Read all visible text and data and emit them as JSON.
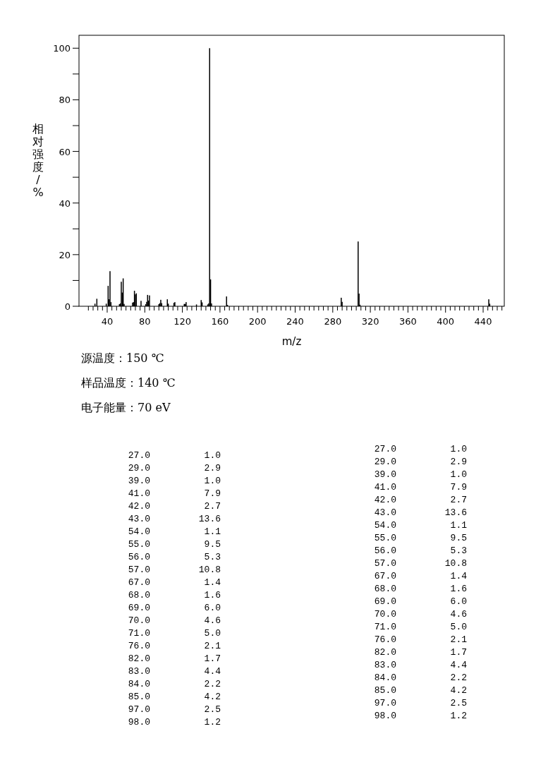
{
  "chart_data": {
    "type": "bar",
    "xlabel": "m/z",
    "ylabel": "相对强度/%",
    "color": "#000000",
    "annotations": [
      "源温度：150 ℃",
      "样品温度：140 ℃",
      "电子能量：70 eV",
      "27.0",
      "1.0",
      "29.0",
      "2.9",
      "39.0",
      "1.0",
      "41.0",
      "7.9",
      "42.0",
      "2.7",
      "43.0",
      "13.6",
      "54.0",
      "1.1",
      "55.0",
      "9.5",
      "56.0",
      "5.3",
      "57.0",
      "10.8",
      "67.0",
      "1.4",
      "68.0",
      "1.6",
      "69.0",
      "6.0",
      "70.0",
      "4.6",
      "71.0",
      "5.0",
      "76.0",
      "2.1",
      "82.0",
      "1.7",
      "83.0",
      "4.4",
      "84.0",
      "2.2",
      "85.0",
      "4.2",
      "97.0",
      "2.5",
      "98.0",
      "1.2",
      "27.0",
      "1.0",
      "29.0",
      "2.9",
      "39.0",
      "1.0",
      "41.0",
      "7.9",
      "42.0",
      "2.7",
      "43.0",
      "13.6",
      "54.0",
      "1.1",
      "55.0",
      "9.5",
      "56.0",
      "5.3",
      "57.0",
      "10.8",
      "67.0",
      "1.4",
      "68.0",
      "1.6",
      "69.0",
      "6.0",
      "70.0",
      "4.6",
      "71.0",
      "5.0",
      "76.0",
      "2.1",
      "82.0",
      "1.7",
      "83.0",
      "4.4",
      "84.0",
      "2.2",
      "85.0",
      "4.2",
      "97.0",
      "2.5",
      "98.0",
      "1.2"
    ],
    "x": [
      27,
      29,
      39,
      41,
      42,
      43,
      44,
      53,
      54,
      55,
      56,
      57,
      58,
      67,
      68,
      69,
      70,
      71,
      76,
      81,
      82,
      83,
      84,
      85,
      95,
      96,
      97,
      98,
      104,
      105,
      111,
      112,
      122,
      123,
      124,
      135,
      140,
      141,
      147,
      148,
      149,
      150,
      151,
      167,
      168,
      289,
      290,
      307,
      308,
      309,
      446,
      447
    ],
    "values": [
      1.0,
      2.9,
      1.0,
      7.9,
      2.7,
      13.6,
      1.6,
      0.8,
      1.1,
      9.5,
      5.3,
      10.8,
      0.9,
      1.4,
      1.6,
      6.0,
      4.6,
      5.0,
      2.1,
      0.8,
      1.7,
      4.4,
      2.2,
      4.2,
      0.8,
      1.2,
      2.5,
      1.2,
      2.7,
      1.0,
      1.3,
      1.6,
      0.9,
      0.9,
      1.6,
      0.7,
      2.4,
      1.5,
      0.7,
      1.1,
      100,
      10.4,
      1.1,
      3.8,
      0.5,
      3.3,
      1.7,
      25.1,
      4.9,
      0.6,
      2.7,
      1.0
    ],
    "xlim": [
      10,
      462.5
    ],
    "ylim": [
      0,
      105
    ],
    "xticks": [
      {
        "value": 20,
        "label": null
      },
      {
        "value": 25,
        "label": null
      },
      {
        "value": 30,
        "label": null
      },
      {
        "value": 35,
        "label": null
      },
      40,
      {
        "value": 45,
        "label": null
      },
      {
        "value": 50,
        "label": null
      },
      {
        "value": 55,
        "label": null
      },
      {
        "value": 60,
        "label": null
      },
      {
        "value": 65,
        "label": null
      },
      {
        "value": 70,
        "label": null
      },
      {
        "value": 75,
        "label": null
      },
      80,
      {
        "value": 85,
        "label": null
      },
      {
        "value": 90,
        "label": null
      },
      {
        "value": 95,
        "label": null
      },
      {
        "value": 100,
        "label": null
      },
      {
        "value": 105,
        "label": null
      },
      {
        "value": 110,
        "label": null
      },
      {
        "value": 115,
        "label": null
      },
      120,
      {
        "value": 125,
        "label": null
      },
      {
        "value": 130,
        "label": null
      },
      {
        "value": 135,
        "label": null
      },
      {
        "value": 140,
        "label": null
      },
      {
        "value": 145,
        "label": null
      },
      {
        "value": 150,
        "label": null
      },
      {
        "value": 155,
        "label": null
      },
      160,
      {
        "value": 165,
        "label": null
      },
      {
        "value": 170,
        "label": null
      },
      {
        "value": 175,
        "label": null
      },
      {
        "value": 180,
        "label": null
      },
      {
        "value": 185,
        "label": null
      },
      {
        "value": 190,
        "label": null
      },
      {
        "value": 195,
        "label": null
      },
      200,
      {
        "value": 205,
        "label": null
      },
      {
        "value": 210,
        "label": null
      },
      {
        "value": 215,
        "label": null
      },
      {
        "value": 220,
        "label": null
      },
      {
        "value": 225,
        "label": null
      },
      {
        "value": 230,
        "label": null
      },
      {
        "value": 235,
        "label": null
      },
      240,
      {
        "value": 245,
        "label": null
      },
      {
        "value": 250,
        "label": null
      },
      {
        "value": 255,
        "label": null
      },
      {
        "value": 260,
        "label": null
      },
      {
        "value": 265,
        "label": null
      },
      {
        "value": 270,
        "label": null
      },
      {
        "value": 275,
        "label": null
      },
      280,
      {
        "value": 285,
        "label": null
      },
      {
        "value": 290,
        "label": null
      },
      {
        "value": 295,
        "label": null
      },
      {
        "value": 300,
        "label": null
      },
      {
        "value": 305,
        "label": null
      },
      {
        "value": 310,
        "label": null
      },
      {
        "value": 315,
        "label": null
      },
      320,
      {
        "value": 325,
        "label": null
      },
      {
        "value": 330,
        "label": null
      },
      {
        "value": 335,
        "label": null
      },
      {
        "value": 340,
        "label": null
      },
      {
        "value": 345,
        "label": null
      },
      {
        "value": 350,
        "label": null
      },
      {
        "value": 355,
        "label": null
      },
      360,
      {
        "value": 365,
        "label": null
      },
      {
        "value": 370,
        "label": null
      },
      {
        "value": 375,
        "label": null
      },
      {
        "value": 380,
        "label": null
      },
      {
        "value": 385,
        "label": null
      },
      {
        "value": 390,
        "label": null
      },
      {
        "value": 395,
        "label": null
      },
      400,
      {
        "value": 405,
        "label": null
      },
      {
        "value": 410,
        "label": null
      },
      {
        "value": 415,
        "label": null
      },
      {
        "value": 420,
        "label": null
      },
      {
        "value": 425,
        "label": null
      },
      {
        "value": 430,
        "label": null
      },
      {
        "value": 435,
        "label": null
      },
      440,
      {
        "value": 445,
        "label": null
      },
      {
        "value": 450,
        "label": null
      },
      {
        "value": 455,
        "label": null
      },
      {
        "value": 460,
        "label": null
      }
    ],
    "yticks": [
      0,
      {
        "value": 10,
        "label": null
      },
      20,
      {
        "value": 30,
        "label": null
      },
      40,
      {
        "value": 50,
        "label": null
      },
      60,
      {
        "value": 70,
        "label": null
      },
      80,
      {
        "value": 90,
        "label": null
      },
      100
    ]
  }
}
